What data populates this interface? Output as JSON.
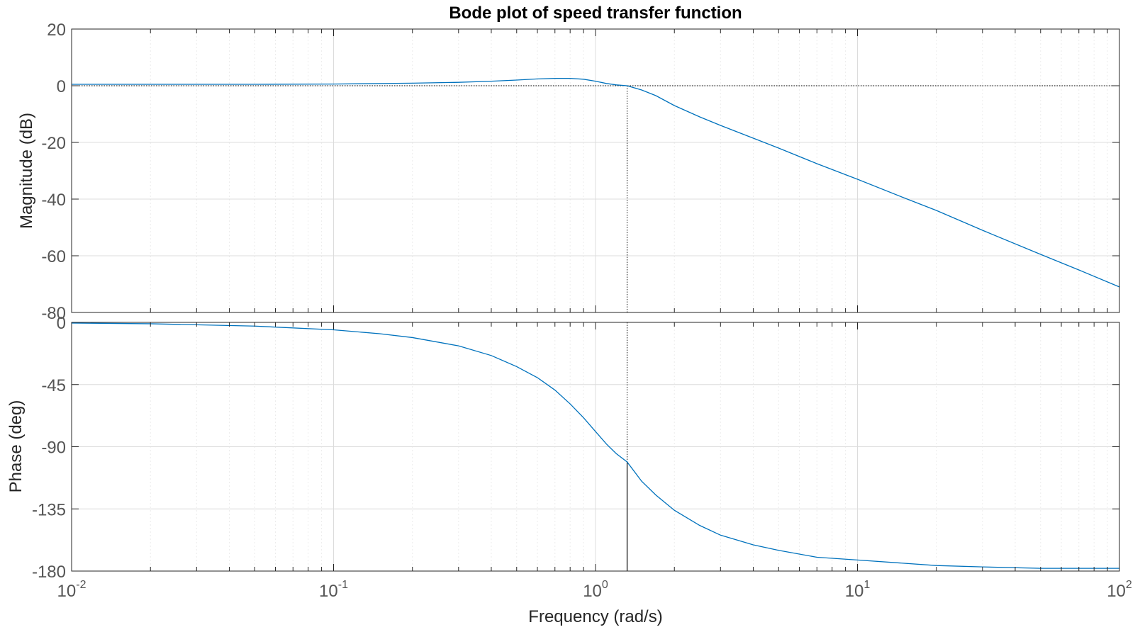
{
  "chart_data": [
    {
      "type": "line",
      "panel": "magnitude",
      "title": "Bode plot of speed transfer function",
      "ylabel": "Magnitude (dB)",
      "xscale": "log",
      "xlim": [
        0.01,
        100
      ],
      "ylim": [
        -80,
        20
      ],
      "yticks": [
        "20",
        "0",
        "-20",
        "-40",
        "-60",
        "-80"
      ],
      "grid": true,
      "reference_lines": [
        {
          "axis": "y",
          "value": 0,
          "style": "dotted"
        }
      ],
      "marker_line": {
        "x": 1.32,
        "style": "dotted"
      },
      "series": [
        {
          "color": "#0072BD",
          "x": [
            0.01,
            0.02,
            0.05,
            0.1,
            0.2,
            0.3,
            0.4,
            0.5,
            0.6,
            0.7,
            0.8,
            0.9,
            1.0,
            1.1,
            1.2,
            1.32,
            1.5,
            1.7,
            2.0,
            2.5,
            3,
            4,
            5,
            7,
            10,
            15,
            20,
            30,
            50,
            70,
            100
          ],
          "y": [
            0.5,
            0.5,
            0.5,
            0.6,
            0.9,
            1.2,
            1.6,
            2.0,
            2.4,
            2.6,
            2.6,
            2.3,
            1.6,
            0.8,
            0.3,
            0.0,
            -1.5,
            -3.5,
            -7,
            -11,
            -14,
            -18.5,
            -22,
            -27.5,
            -33,
            -39.5,
            -44,
            -51,
            -59.5,
            -65,
            -71
          ]
        }
      ]
    },
    {
      "type": "line",
      "panel": "phase",
      "xlabel": "Frequency  (rad/s)",
      "ylabel": "Phase (deg)",
      "xscale": "log",
      "xlim": [
        0.01,
        100
      ],
      "ylim": [
        -180,
        0
      ],
      "yticks": [
        "0",
        "-45",
        "-90",
        "-135",
        "-180"
      ],
      "xticks": [
        {
          "base": "10",
          "exp": "-2"
        },
        {
          "base": "10",
          "exp": "-1"
        },
        {
          "base": "10",
          "exp": "0"
        },
        {
          "base": "10",
          "exp": "1"
        },
        {
          "base": "10",
          "exp": "2"
        }
      ],
      "grid": true,
      "reference_lines": [
        {
          "axis": "y",
          "value": -180,
          "style": "dotted"
        }
      ],
      "marker_line": {
        "x": 1.32,
        "y": -101,
        "style": "dotted-above-solid-below"
      },
      "series": [
        {
          "color": "#0072BD",
          "x": [
            0.01,
            0.02,
            0.05,
            0.1,
            0.15,
            0.2,
            0.3,
            0.4,
            0.5,
            0.6,
            0.7,
            0.8,
            0.9,
            1.0,
            1.1,
            1.2,
            1.32,
            1.5,
            1.7,
            2.0,
            2.5,
            3,
            4,
            5,
            7,
            10,
            20,
            30,
            50,
            100
          ],
          "y": [
            -0.5,
            -1,
            -2.7,
            -5.4,
            -8.2,
            -11,
            -17,
            -24,
            -32,
            -40,
            -49,
            -59,
            -69,
            -79,
            -88,
            -95,
            -101,
            -115,
            -125,
            -136,
            -147,
            -154,
            -161,
            -165,
            -170,
            -172,
            -176,
            -177,
            -178,
            -178
          ]
        }
      ]
    }
  ]
}
